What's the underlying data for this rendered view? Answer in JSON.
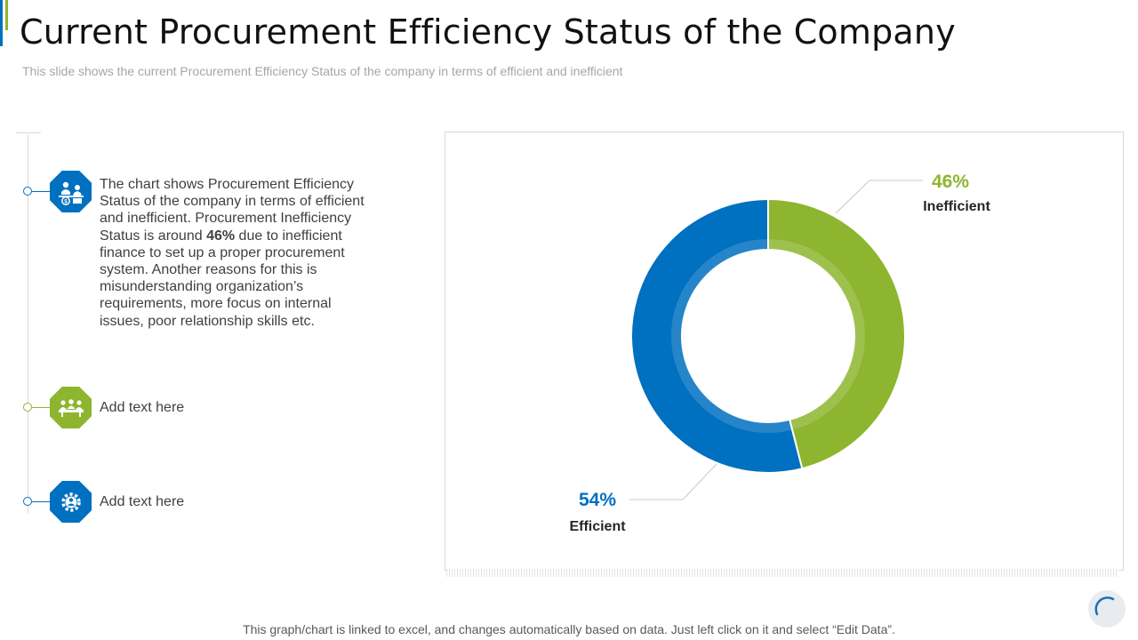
{
  "title": "Current Procurement Efficiency Status of the Company",
  "subtitle": "This slide shows the current Procurement Efficiency Status of the company in terms of efficient and inefficient",
  "items": [
    {
      "icon": "finance-team-icon",
      "text_before": "The chart shows Procurement Efficiency Status of the company in terms of efficient and inefficient. Procurement Inefficiency Status is around ",
      "highlight": "46%",
      "text_after": " due to inefficient finance to set up a proper procurement system. Another reasons for this is misunderstanding organization’s requirements, more focus on internal issues, poor relationship skills etc."
    },
    {
      "icon": "meeting-icon",
      "text": "Add text here"
    },
    {
      "icon": "gear-person-icon",
      "text": "Add text here"
    }
  ],
  "chart_data": {
    "type": "pie",
    "donut": true,
    "categories": [
      "Inefficient",
      "Efficient"
    ],
    "values": [
      46,
      54
    ],
    "labels": [
      "46%",
      "54%"
    ],
    "colors": [
      "#8db52f",
      "#0070c0"
    ],
    "legend": "none"
  },
  "footer": "This graph/chart is linked to excel, and changes automatically based on data. Just left click on it and select “Edit Data”."
}
